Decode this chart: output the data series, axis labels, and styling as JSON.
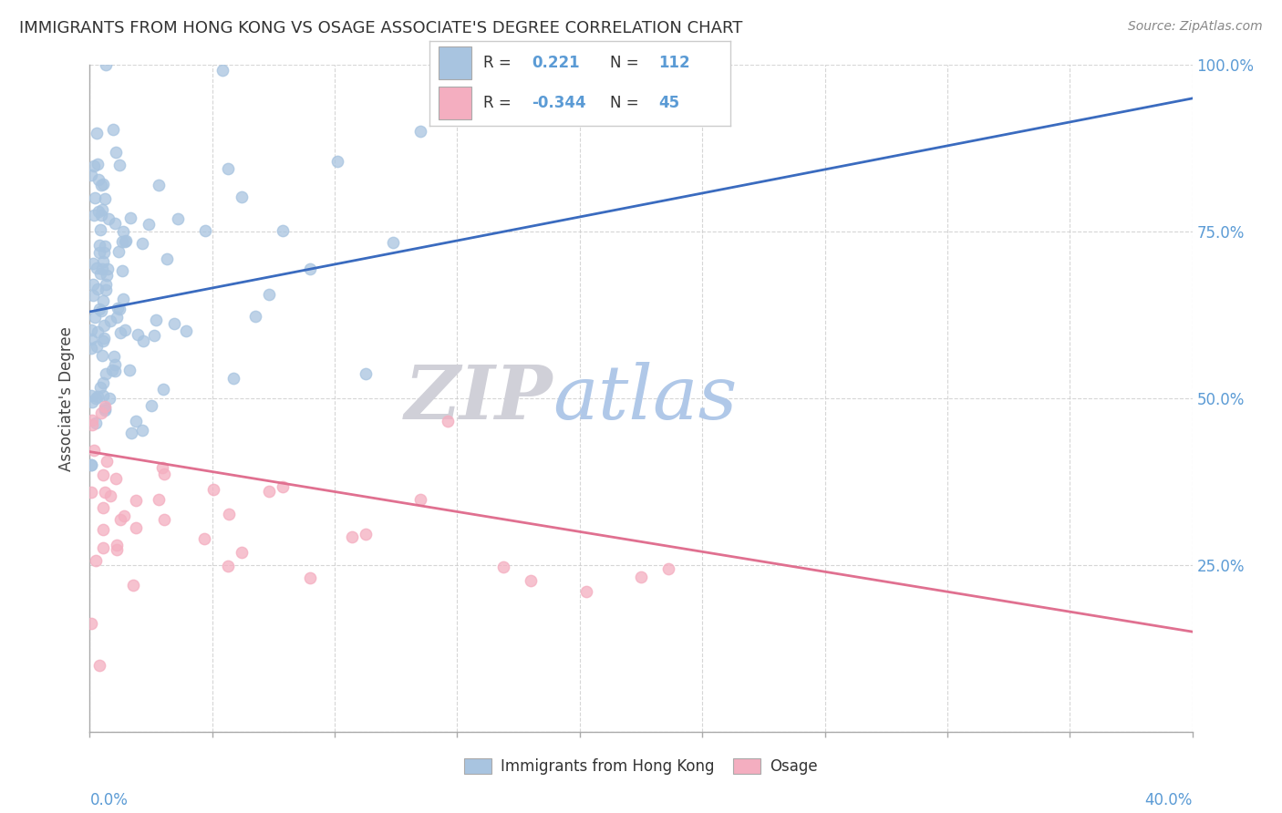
{
  "title": "IMMIGRANTS FROM HONG KONG VS OSAGE ASSOCIATE'S DEGREE CORRELATION CHART",
  "source": "Source: ZipAtlas.com",
  "xlim": [
    0.0,
    40.0
  ],
  "ylim": [
    0.0,
    100.0
  ],
  "series1_label": "Immigrants from Hong Kong",
  "series1_color": "#a8c4e0",
  "series1_line_color": "#3a6bbf",
  "series1_R": 0.221,
  "series1_N": 112,
  "series2_label": "Osage",
  "series2_color": "#f4aec0",
  "series2_line_color": "#e07090",
  "series2_R": -0.344,
  "series2_N": 45,
  "watermark_zip": "ZIP",
  "watermark_atlas": "atlas",
  "watermark_zip_color": "#d0d0d8",
  "watermark_atlas_color": "#b0c8e8",
  "background_color": "#ffffff",
  "grid_color": "#cccccc",
  "tick_color": "#5b9bd5",
  "title_fontsize": 13,
  "source_fontsize": 10,
  "legend_box_color": "#ffffff",
  "legend_box_edge": "#cccccc",
  "ytick_labels": [
    "25.0%",
    "50.0%",
    "75.0%",
    "100.0%"
  ],
  "ytick_values": [
    25,
    50,
    75,
    100
  ],
  "ylabel": "Associate's Degree"
}
